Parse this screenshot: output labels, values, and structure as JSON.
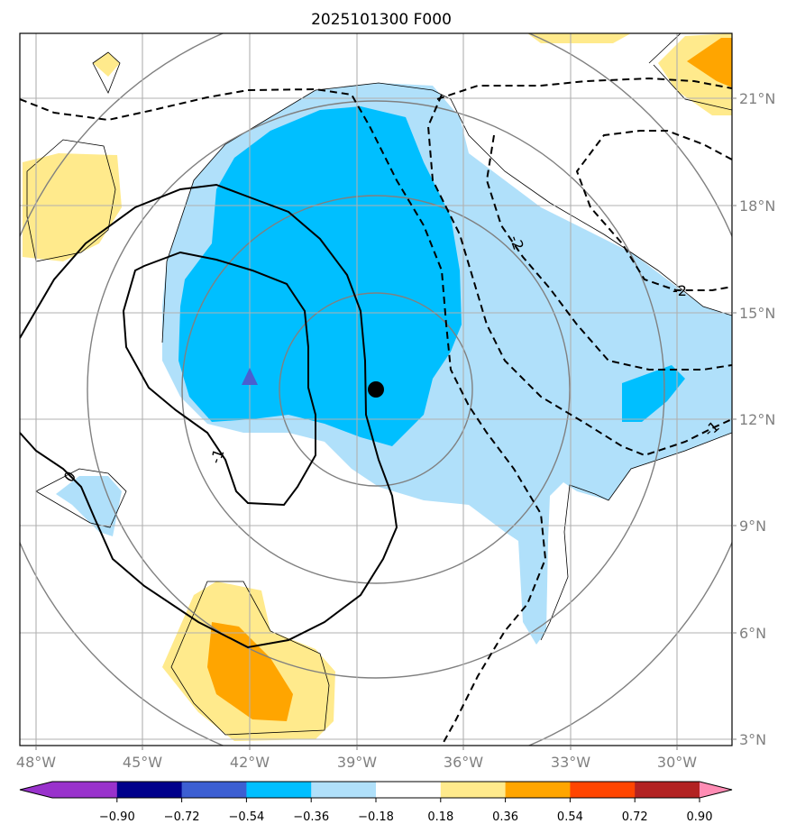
{
  "title": "2025101300 F000",
  "lon_labels": [
    "48°W",
    "45°W",
    "42°W",
    "39°W",
    "36°W",
    "33°W",
    "30°W"
  ],
  "lat_labels": [
    "21°N",
    "18°N",
    "15°N",
    "12°N",
    "9°N",
    "6°N",
    "3°N"
  ],
  "colorbar": {
    "labels": [
      "−0.90",
      "−0.72",
      "−0.54",
      "−0.36",
      "−0.18",
      "0.18",
      "0.36",
      "0.54",
      "0.72",
      "0.90"
    ],
    "colors": {
      "under": "#9932cc",
      "bins": [
        "#9932cc",
        "#00008b",
        "#3c5fd2",
        "#00bfff",
        "#b0e0fa",
        "#ffffff",
        "#ffea8c",
        "#ffa500",
        "#ff4500",
        "#b22222"
      ],
      "over": "#ff8cb4"
    }
  },
  "contour_labels": {
    "zero": "0",
    "neg_one_inner": "-1",
    "neg_two_mid": "-2",
    "neg_two_right": "-2",
    "neg_one_right": "-1"
  },
  "markers": {
    "center_dot_color": "#000000",
    "triangle_color": "#4a5fd0"
  },
  "shading_colors": {
    "light_blue": "#b0e0fa",
    "blue": "#00bfff",
    "yellow": "#ffea8c",
    "orange": "#ffa500"
  }
}
